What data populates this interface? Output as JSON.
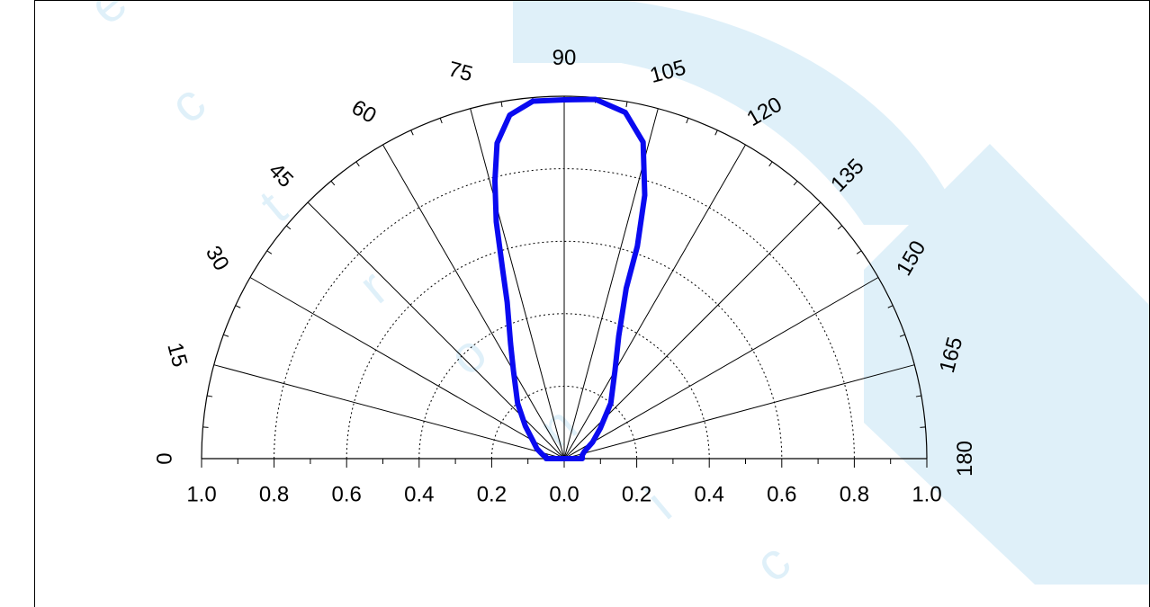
{
  "colors": {
    "curve": "#0a0af0",
    "grid_dotted": "#000000",
    "spoke": "#000000",
    "watermark": "#dff0f9"
  },
  "watermark": {
    "letters": [
      "e",
      "c",
      "t",
      "r",
      "o",
      "n",
      "i",
      "c"
    ]
  },
  "chart_data": {
    "type": "polar-line",
    "title": "",
    "angle_range": [
      0,
      180
    ],
    "angle_ticks": [
      0,
      15,
      30,
      45,
      60,
      75,
      90,
      105,
      120,
      135,
      150,
      165,
      180
    ],
    "angle_tick_labels": [
      "0",
      "15",
      "30",
      "45",
      "60",
      "75",
      "90",
      "105",
      "120",
      "135",
      "150",
      "165",
      "180"
    ],
    "radial_range": [
      0,
      1.0
    ],
    "radial_grid": [
      0.2,
      0.4,
      0.6,
      0.8
    ],
    "x_tick_values": [
      1.0,
      0.8,
      0.6,
      0.4,
      0.2,
      0.0,
      0.2,
      0.4,
      0.6,
      0.8,
      1.0
    ],
    "x_tick_labels": [
      "1.0",
      "0.8",
      "0.6",
      "0.4",
      "0.2",
      "0.0",
      "0.2",
      "0.4",
      "0.6",
      "0.8",
      "1.0"
    ],
    "series": [
      {
        "points": [
          {
            "angle": 0,
            "r": 0.05
          },
          {
            "angle": 5,
            "r": 0.05
          },
          {
            "angle": 10,
            "r": 0.06
          },
          {
            "angle": 20,
            "r": 0.08
          },
          {
            "angle": 30,
            "r": 0.1
          },
          {
            "angle": 40,
            "r": 0.14
          },
          {
            "angle": 50,
            "r": 0.2
          },
          {
            "angle": 60,
            "r": 0.28
          },
          {
            "angle": 65,
            "r": 0.35
          },
          {
            "angle": 70,
            "r": 0.46
          },
          {
            "angle": 72,
            "r": 0.55
          },
          {
            "angle": 74,
            "r": 0.68
          },
          {
            "angle": 76,
            "r": 0.79
          },
          {
            "angle": 78,
            "r": 0.89
          },
          {
            "angle": 81,
            "r": 0.96
          },
          {
            "angle": 85,
            "r": 0.99
          },
          {
            "angle": 90,
            "r": 0.99
          },
          {
            "angle": 95,
            "r": 0.995
          },
          {
            "angle": 100,
            "r": 0.97
          },
          {
            "angle": 104,
            "r": 0.9
          },
          {
            "angle": 107,
            "r": 0.76
          },
          {
            "angle": 109,
            "r": 0.62
          },
          {
            "angle": 110,
            "r": 0.5
          },
          {
            "angle": 114,
            "r": 0.37
          },
          {
            "angle": 120,
            "r": 0.28
          },
          {
            "angle": 130,
            "r": 0.2
          },
          {
            "angle": 140,
            "r": 0.13
          },
          {
            "angle": 150,
            "r": 0.09
          },
          {
            "angle": 160,
            "r": 0.06
          },
          {
            "angle": 170,
            "r": 0.05
          },
          {
            "angle": 175,
            "r": 0.05
          },
          {
            "angle": 180,
            "r": 0.05
          }
        ]
      }
    ]
  }
}
